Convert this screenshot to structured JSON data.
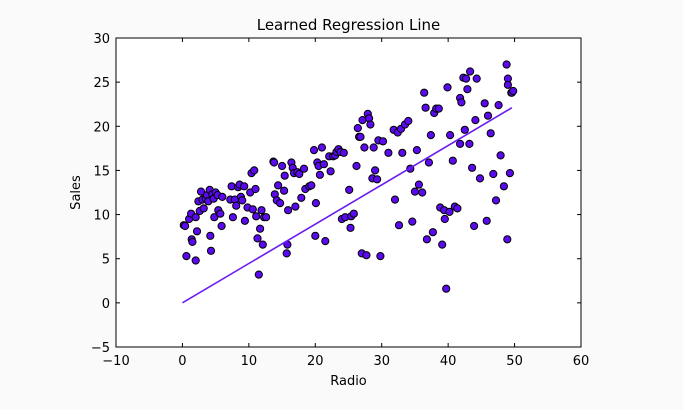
{
  "chart_data": {
    "type": "scatter",
    "title": "Learned Regression Line",
    "xlabel": "Radio",
    "ylabel": "Sales",
    "xlim": [
      -10,
      60
    ],
    "ylim": [
      -5,
      30
    ],
    "xticks": [
      -10,
      0,
      10,
      20,
      30,
      40,
      50,
      60
    ],
    "yticks": [
      -5,
      0,
      5,
      10,
      15,
      20,
      25,
      30
    ],
    "xtick_labels": [
      "−10",
      "0",
      "10",
      "20",
      "30",
      "40",
      "50",
      "60"
    ],
    "ytick_labels": [
      "−5",
      "0",
      "5",
      "10",
      "15",
      "20",
      "25",
      "30"
    ],
    "grid": false,
    "legend": null,
    "marker_color": "#5b0af0",
    "line_color": "#6a1cf0",
    "series": [
      {
        "name": "data",
        "kind": "scatter",
        "points": [
          [
            0.2,
            8.8
          ],
          [
            0.4,
            8.7
          ],
          [
            0.6,
            5.3
          ],
          [
            1.0,
            9.5
          ],
          [
            1.3,
            10.1
          ],
          [
            1.4,
            7.2
          ],
          [
            1.5,
            6.9
          ],
          [
            2.0,
            9.7
          ],
          [
            2.0,
            4.8
          ],
          [
            2.2,
            8.1
          ],
          [
            2.4,
            11.5
          ],
          [
            2.6,
            10.4
          ],
          [
            2.8,
            12.6
          ],
          [
            3.0,
            11.7
          ],
          [
            3.2,
            10.7
          ],
          [
            3.5,
            11.8
          ],
          [
            3.7,
            12.2
          ],
          [
            3.9,
            11.5
          ],
          [
            4.1,
            12.8
          ],
          [
            4.2,
            7.6
          ],
          [
            4.3,
            5.9
          ],
          [
            4.5,
            12.3
          ],
          [
            4.7,
            11.8
          ],
          [
            4.8,
            9.7
          ],
          [
            5.0,
            12.5
          ],
          [
            5.3,
            12.2
          ],
          [
            5.4,
            10.5
          ],
          [
            5.7,
            10.1
          ],
          [
            5.9,
            8.7
          ],
          [
            6.0,
            12.0
          ],
          [
            7.2,
            11.7
          ],
          [
            7.4,
            13.2
          ],
          [
            7.6,
            9.7
          ],
          [
            7.9,
            11.7
          ],
          [
            8.1,
            11.0
          ],
          [
            8.4,
            13.1
          ],
          [
            8.6,
            13.4
          ],
          [
            8.8,
            12.0
          ],
          [
            9.0,
            11.6
          ],
          [
            9.3,
            13.2
          ],
          [
            9.4,
            9.3
          ],
          [
            9.8,
            10.8
          ],
          [
            10.2,
            12.5
          ],
          [
            10.4,
            14.7
          ],
          [
            10.6,
            10.6
          ],
          [
            10.8,
            15.0
          ],
          [
            11.0,
            12.9
          ],
          [
            11.1,
            9.8
          ],
          [
            11.3,
            7.3
          ],
          [
            11.5,
            3.2
          ],
          [
            11.7,
            8.4
          ],
          [
            11.9,
            10.5
          ],
          [
            12.1,
            6.6
          ],
          [
            12.3,
            9.7
          ],
          [
            12.6,
            9.7
          ],
          [
            13.7,
            16.0
          ],
          [
            13.8,
            15.9
          ],
          [
            13.9,
            12.3
          ],
          [
            14.2,
            11.6
          ],
          [
            14.4,
            13.3
          ],
          [
            14.7,
            11.3
          ],
          [
            15.0,
            15.5
          ],
          [
            15.3,
            12.7
          ],
          [
            15.4,
            14.4
          ],
          [
            15.7,
            5.6
          ],
          [
            15.8,
            6.6
          ],
          [
            15.9,
            10.5
          ],
          [
            16.4,
            15.9
          ],
          [
            16.6,
            15.3
          ],
          [
            16.8,
            14.7
          ],
          [
            17.0,
            10.9
          ],
          [
            17.3,
            14.8
          ],
          [
            17.6,
            14.6
          ],
          [
            17.9,
            11.9
          ],
          [
            18.3,
            15.2
          ],
          [
            18.5,
            12.9
          ],
          [
            19.1,
            13.2
          ],
          [
            19.4,
            13.3
          ],
          [
            19.8,
            17.3
          ],
          [
            20.0,
            7.6
          ],
          [
            20.1,
            11.3
          ],
          [
            20.3,
            15.9
          ],
          [
            20.5,
            15.5
          ],
          [
            20.7,
            14.5
          ],
          [
            21.0,
            17.6
          ],
          [
            21.3,
            15.7
          ],
          [
            21.5,
            7.0
          ],
          [
            22.1,
            16.6
          ],
          [
            22.3,
            14.9
          ],
          [
            22.7,
            16.6
          ],
          [
            23.0,
            16.7
          ],
          [
            23.2,
            17.1
          ],
          [
            23.5,
            17.4
          ],
          [
            23.8,
            17.1
          ],
          [
            24.0,
            9.5
          ],
          [
            24.3,
            17.0
          ],
          [
            24.5,
            9.7
          ],
          [
            25.1,
            12.8
          ],
          [
            25.3,
            8.5
          ],
          [
            25.4,
            9.8
          ],
          [
            25.8,
            10.1
          ],
          [
            26.2,
            15.5
          ],
          [
            26.4,
            19.8
          ],
          [
            26.6,
            18.8
          ],
          [
            26.8,
            18.8
          ],
          [
            27.0,
            5.6
          ],
          [
            27.1,
            20.7
          ],
          [
            27.4,
            17.6
          ],
          [
            27.7,
            5.4
          ],
          [
            27.9,
            21.4
          ],
          [
            28.1,
            20.9
          ],
          [
            28.3,
            20.2
          ],
          [
            28.6,
            14.1
          ],
          [
            28.8,
            17.6
          ],
          [
            29.0,
            15.0
          ],
          [
            29.3,
            14.0
          ],
          [
            29.5,
            18.4
          ],
          [
            29.8,
            5.3
          ],
          [
            30.2,
            18.3
          ],
          [
            31.0,
            17.0
          ],
          [
            31.8,
            19.6
          ],
          [
            32.0,
            11.7
          ],
          [
            32.4,
            19.3
          ],
          [
            32.6,
            8.8
          ],
          [
            32.9,
            19.7
          ],
          [
            33.1,
            17.0
          ],
          [
            33.5,
            20.2
          ],
          [
            34.0,
            20.6
          ],
          [
            34.3,
            15.2
          ],
          [
            34.6,
            9.2
          ],
          [
            35.0,
            12.6
          ],
          [
            35.3,
            17.3
          ],
          [
            35.6,
            13.4
          ],
          [
            36.1,
            12.5
          ],
          [
            36.4,
            23.8
          ],
          [
            36.6,
            22.1
          ],
          [
            36.8,
            7.2
          ],
          [
            37.1,
            15.9
          ],
          [
            37.4,
            19.0
          ],
          [
            37.7,
            8.0
          ],
          [
            37.9,
            21.5
          ],
          [
            38.2,
            22.0
          ],
          [
            38.6,
            22.0
          ],
          [
            38.8,
            10.8
          ],
          [
            39.1,
            6.6
          ],
          [
            39.4,
            10.5
          ],
          [
            39.5,
            9.5
          ],
          [
            39.7,
            1.6
          ],
          [
            39.9,
            24.4
          ],
          [
            40.2,
            10.3
          ],
          [
            40.3,
            19.0
          ],
          [
            40.7,
            16.1
          ],
          [
            41.0,
            10.9
          ],
          [
            41.4,
            10.7
          ],
          [
            41.8,
            18.0
          ],
          [
            41.8,
            23.2
          ],
          [
            42.0,
            22.7
          ],
          [
            42.3,
            25.5
          ],
          [
            42.5,
            19.6
          ],
          [
            42.7,
            25.4
          ],
          [
            42.9,
            24.2
          ],
          [
            43.2,
            18.0
          ],
          [
            43.3,
            26.2
          ],
          [
            43.6,
            15.3
          ],
          [
            43.9,
            8.7
          ],
          [
            44.1,
            20.7
          ],
          [
            44.3,
            25.4
          ],
          [
            44.8,
            14.1
          ],
          [
            45.5,
            22.6
          ],
          [
            45.8,
            9.3
          ],
          [
            46.0,
            21.2
          ],
          [
            46.4,
            19.2
          ],
          [
            46.8,
            14.6
          ],
          [
            47.2,
            11.6
          ],
          [
            47.6,
            22.4
          ],
          [
            47.9,
            16.7
          ],
          [
            48.4,
            13.2
          ],
          [
            48.8,
            27.0
          ],
          [
            48.9,
            7.2
          ],
          [
            49.0,
            25.4
          ],
          [
            49.0,
            24.7
          ],
          [
            49.3,
            14.7
          ],
          [
            49.5,
            23.8
          ],
          [
            49.6,
            23.8
          ],
          [
            49.8,
            24.0
          ]
        ]
      },
      {
        "name": "regression",
        "kind": "line",
        "x": [
          0,
          49.6
        ],
        "y": [
          0,
          22.1
        ]
      }
    ]
  }
}
